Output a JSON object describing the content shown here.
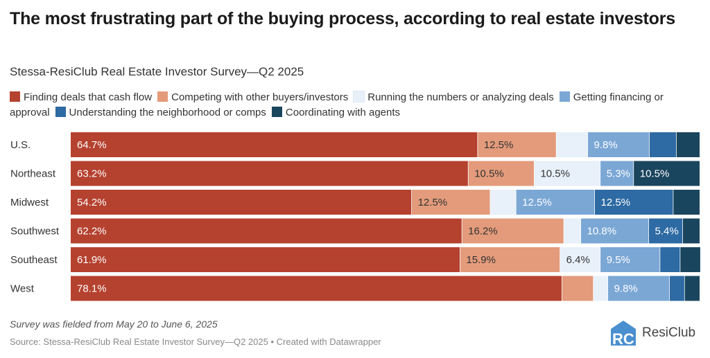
{
  "chart_data": {
    "type": "bar",
    "orientation": "horizontal-stacked",
    "title": "The most frustrating part of the buying process, according to real estate investors",
    "subtitle": "Stessa-ResiClub Real Estate Investor Survey—Q2 2025",
    "categories": [
      "U.S.",
      "Northeast",
      "Midwest",
      "Southwest",
      "Southeast",
      "West"
    ],
    "series": [
      {
        "name": "Finding deals that cash flow",
        "color": "#b5412f",
        "label_color": "#ffffff",
        "values": [
          64.7,
          63.2,
          54.2,
          62.2,
          61.9,
          78.1
        ],
        "labels": [
          "64.7%",
          "63.2%",
          "54.2%",
          "62.2%",
          "61.9%",
          "78.1%"
        ]
      },
      {
        "name": "Competing with other buyers/investors",
        "color": "#e39b7b",
        "label_color": "#333333",
        "values": [
          12.5,
          10.5,
          12.5,
          16.2,
          15.9,
          5.0
        ],
        "labels": [
          "12.5%",
          "10.5%",
          "12.5%",
          "16.2%",
          "15.9%",
          ""
        ]
      },
      {
        "name": "Running the numbers or analyzing deals",
        "color": "#e8f0fa",
        "label_color": "#333333",
        "values": [
          5.0,
          10.5,
          4.1,
          2.7,
          6.4,
          2.3
        ],
        "labels": [
          "",
          "10.5%",
          "",
          "",
          "6.4%",
          ""
        ]
      },
      {
        "name": "Getting financing or approval",
        "color": "#7ba7d5",
        "label_color": "#ffffff",
        "values": [
          9.8,
          5.3,
          12.5,
          10.8,
          9.5,
          9.8
        ],
        "labels": [
          "9.8%",
          "5.3%",
          "12.5%",
          "10.8%",
          "9.5%",
          "9.8%"
        ]
      },
      {
        "name": "Understanding the neighborhood or comps",
        "color": "#2e6aa3",
        "label_color": "#ffffff",
        "values": [
          4.3,
          0,
          12.5,
          5.4,
          3.2,
          2.4
        ],
        "labels": [
          "",
          "",
          "12.5%",
          "5.4%",
          "",
          ""
        ]
      },
      {
        "name": "Coordinating with agents",
        "color": "#1a455e",
        "label_color": "#ffffff",
        "values": [
          3.7,
          10.5,
          4.2,
          2.7,
          3.2,
          2.4
        ],
        "labels": [
          "",
          "10.5%",
          "",
          "",
          "",
          ""
        ]
      }
    ],
    "xlim": [
      0,
      100
    ],
    "legend_position": "top",
    "grid": false
  },
  "footnote": "Survey was fielded from May 20 to June 6, 2025",
  "source": "Source: Stessa-ResiClub Real Estate Investor Survey—Q2 2025 • Created with Datawrapper",
  "logo": {
    "text": "ResiClub",
    "mark": "RC"
  }
}
